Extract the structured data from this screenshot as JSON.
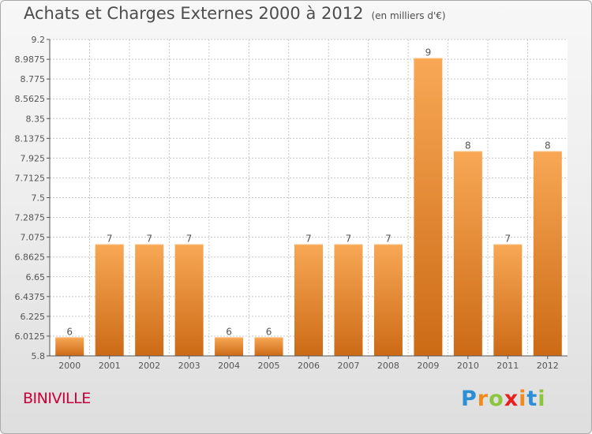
{
  "chart_data": {
    "type": "bar",
    "title": "Achats et Charges Externes 2000 à 2012",
    "subtitle": "(en milliers d'€)",
    "categories": [
      "2000",
      "2001",
      "2002",
      "2003",
      "2004",
      "2005",
      "2006",
      "2007",
      "2008",
      "2009",
      "2010",
      "2011",
      "2012"
    ],
    "values": [
      6,
      7,
      7,
      7,
      6,
      6,
      7,
      7,
      7,
      9,
      8,
      7,
      8
    ],
    "data_labels": [
      "6",
      "7",
      "7",
      "7",
      "6",
      "6",
      "7",
      "7",
      "7",
      "9",
      "8",
      "7",
      "8"
    ],
    "ylim": [
      5.8,
      9.2
    ],
    "yticks": [
      "5.8",
      "6.0125",
      "6.225",
      "6.4375",
      "6.65",
      "6.8625",
      "7.075",
      "7.2875",
      "7.5",
      "7.7125",
      "7.925",
      "8.1375",
      "8.35",
      "8.5625",
      "8.775",
      "8.9875",
      "9.2"
    ],
    "grid": true,
    "bar_color": "#f29a3c",
    "xlabel": "",
    "ylabel": ""
  },
  "commune": "BINIVILLE",
  "logo": {
    "text": "Proxiti",
    "letter_colors": [
      "#2c8fd6",
      "#f08a1c",
      "#8cc63f",
      "#e8201e",
      "#f08a1c",
      "#2c8fd6",
      "#8cc63f"
    ]
  },
  "colors": {
    "commune_label": "#c8003c",
    "axis": "#555555",
    "grid": "#c8c8c8"
  }
}
